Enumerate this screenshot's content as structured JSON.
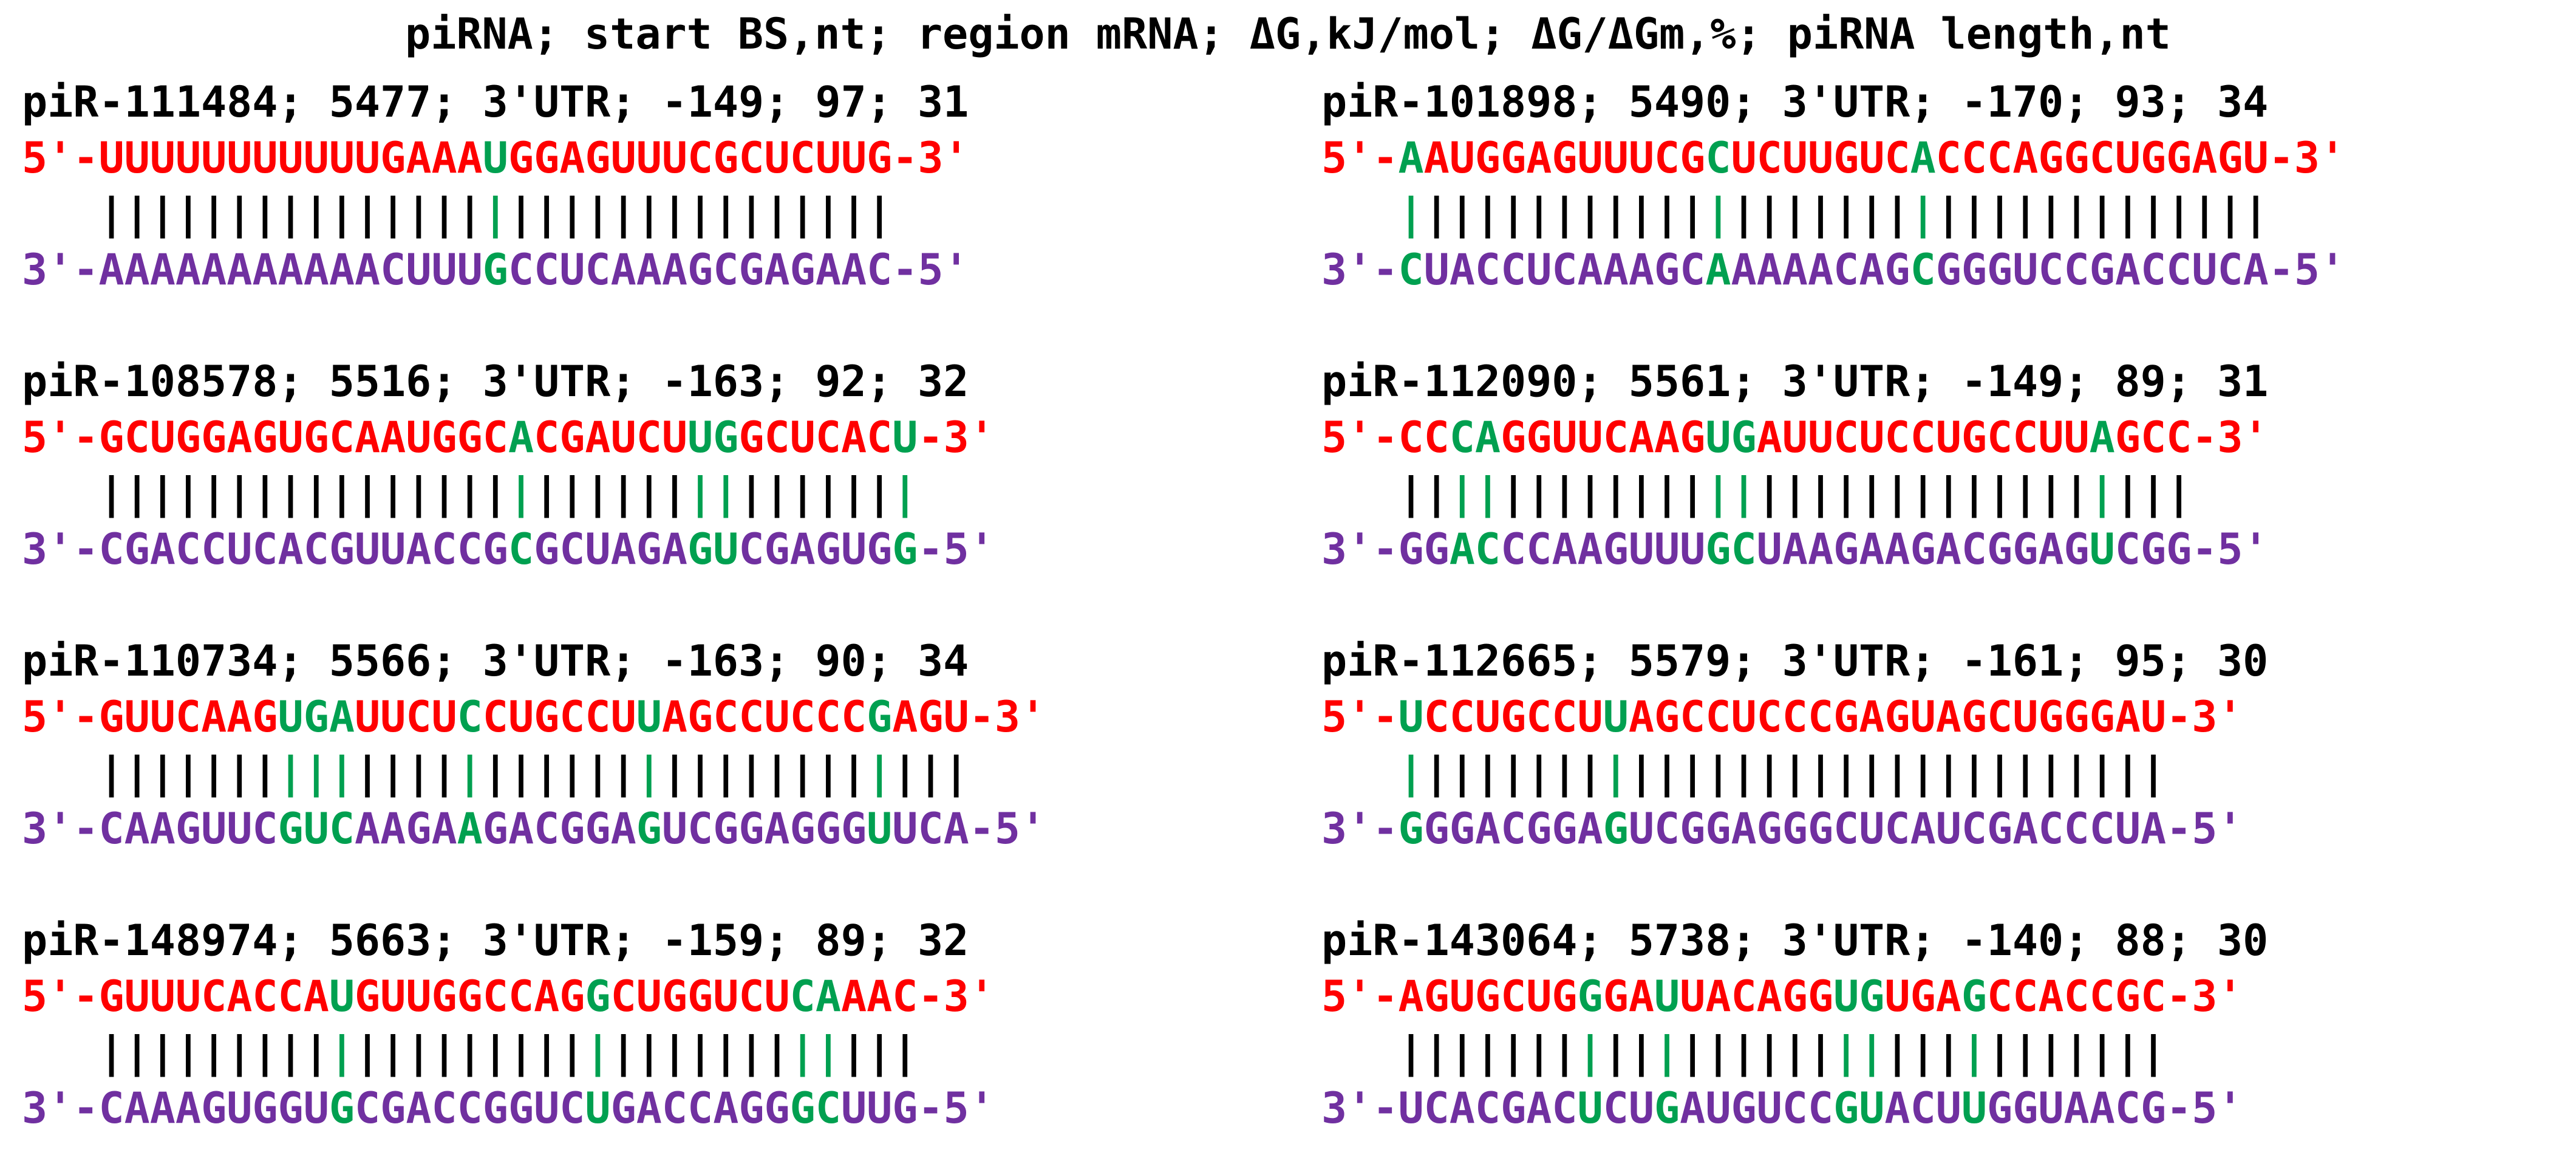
{
  "header": "piRNA; start BS,nt; region mRNA; ΔG,kJ/mol; ΔG/ΔGm,%; piRNA length,nt",
  "colors": {
    "mrna": "#ff0000",
    "pirna": "#7030a0",
    "mismatch": "#00a050",
    "text": "#000000"
  },
  "entries": [
    {
      "info": "piR-111484; 5477; 3'UTR; -149; 97; 31",
      "mrna": "UUUUUUUUUUUGAAAUGGAGUUUCGCUCUUG",
      "pirna": "AAAAAAAAAAACUUUGCCUCAAAGCGAGAAC",
      "mrna_green": [
        15
      ],
      "pirna_green": [
        15
      ]
    },
    {
      "info": "piR-101898; 5490; 3'UTR; -170; 93; 34",
      "mrna": "AAUGGAGUUUCGCUCUUGUCACCCAGGCUGGAGU",
      "pirna": "CUACCUCAAAGCAAAAACAGCGGGUCCGACCUCA",
      "mrna_green": [
        0,
        12,
        20
      ],
      "pirna_green": [
        0,
        12,
        20
      ]
    },
    {
      "info": "piR-108578; 5516; 3'UTR; -163; 92; 32",
      "mrna": "GCUGGAGUGCAAUGGCACGAUCUUGGCUCACU",
      "pirna": "CGACCUCACGUUACCGCGCUAGAGUCGAGUGG",
      "mrna_green": [
        16,
        23,
        24,
        31
      ],
      "pirna_green": [
        16,
        23,
        24,
        31
      ]
    },
    {
      "info": "piR-112090; 5561; 3'UTR; -149; 89; 31",
      "mrna": "CCCAGGUUCAAGUGAUUCUCCUGCCUUAGCC",
      "pirna": "GGACCCAAGUUUGCUAAGAAGACGGAGUCGG",
      "mrna_green": [
        2,
        3,
        12,
        13,
        27
      ],
      "pirna_green": [
        2,
        3,
        12,
        13,
        27
      ]
    },
    {
      "info": "piR-110734; 5566; 3'UTR; -163; 90; 34",
      "mrna": "GUUCAAGUGAUUCUCCUGCCUUAGCCUCCCGAGU",
      "pirna": "CAAGUUCGUCAAGAAGACGGAGUCGGAGGGUUCA",
      "mrna_green": [
        7,
        8,
        9,
        14,
        21,
        30
      ],
      "pirna_green": [
        7,
        8,
        9,
        14,
        21,
        30
      ]
    },
    {
      "info": "piR-112665; 5579; 3'UTR; -161; 95; 30",
      "mrna": "UCCUGCCUUAGCCUCCCGAGUAGCUGGGAU",
      "pirna": "GGGACGGAGUCGGAGGGCUCAUCGACCCUA",
      "mrna_green": [
        0,
        8
      ],
      "pirna_green": [
        0,
        8
      ]
    },
    {
      "info": "piR-148974; 5663; 3'UTR; -159; 89; 32",
      "mrna": "GUUUCACCAUGUUGGCCAGGCUGGUCUCAAAC",
      "pirna": "CAAAGUGGUGCGACCGGUCUGACCAGGGCUUG",
      "mrna_green": [
        9,
        19,
        27,
        28
      ],
      "pirna_green": [
        9,
        19,
        27,
        28
      ]
    },
    {
      "info": "piR-143064; 5738; 3'UTR; -140; 88; 30",
      "mrna": "AGUGCUGGGAUUACAGGUGUGAGCCACCGC",
      "pirna": "UCACGACUCUGAUGUCCGUACUUGGUAACG",
      "mrna_green": [
        7,
        10,
        17,
        18,
        22
      ],
      "pirna_green": [
        7,
        10,
        17,
        18,
        22
      ]
    }
  ],
  "labels": {
    "m_prefix": "5'-",
    "m_suffix": "-3'",
    "p_prefix": "3'-",
    "p_suffix": "-5'"
  }
}
